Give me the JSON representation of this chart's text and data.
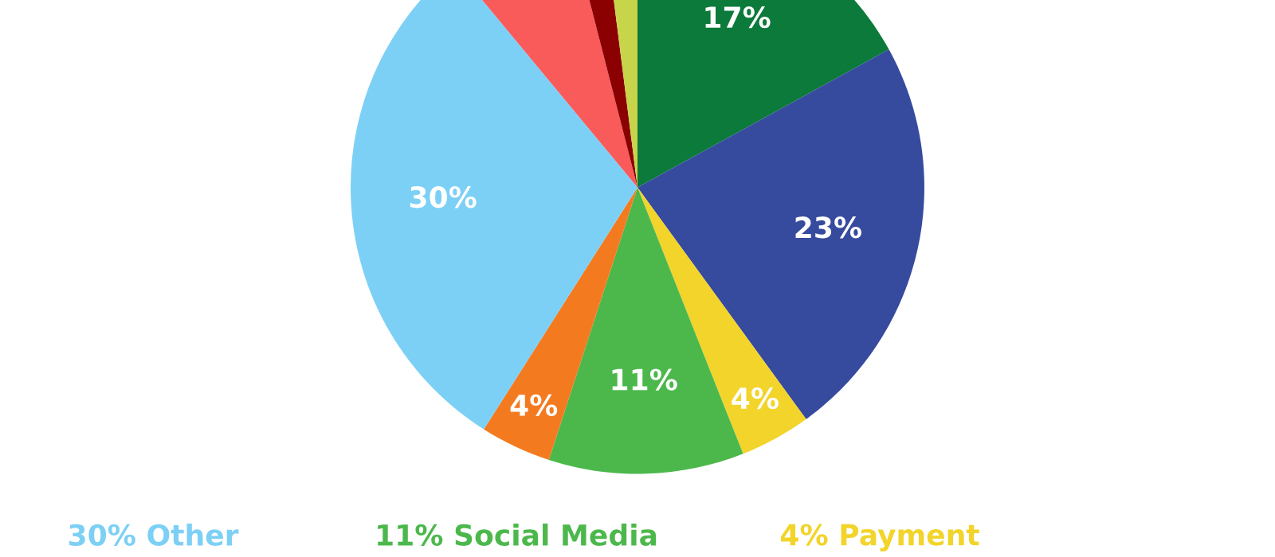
{
  "chart_data": {
    "type": "pie",
    "categories": [
      null,
      null,
      "Payment",
      "Social Media",
      null,
      "Other",
      null,
      null,
      null
    ],
    "values": [
      17,
      23,
      4,
      11,
      4,
      30,
      7,
      2,
      2
    ],
    "value_labels": [
      "17%",
      "23%",
      "4%",
      "11%",
      "4%",
      "30%",
      null,
      null,
      null
    ],
    "colors": [
      "#0b7a3a",
      "#364a9e",
      "#f2d42a",
      "#4cb84c",
      "#f47a20",
      "#7dd0f5",
      "#f95a5a",
      "#8b0000",
      "#c8d44a"
    ]
  }
}
